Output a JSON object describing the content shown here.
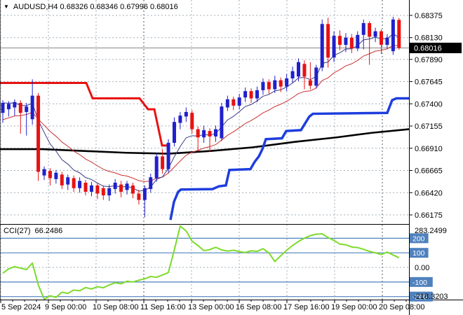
{
  "window": {
    "symbol_line": "AUDUSD,H4 0.68326 0.68346 0.67996 0.68016",
    "symbol": "AUDUSD",
    "timeframe": "H4",
    "ohlc": {
      "open": "0.68326",
      "high": "0.68346",
      "low": "0.67996",
      "close": "0.68016"
    }
  },
  "icons": {
    "symbol_dropdown": "▼"
  },
  "price_axis": {
    "labels": [
      "0.68375",
      "0.68130",
      "0.67890",
      "0.67645",
      "0.67400",
      "0.67155",
      "0.66910",
      "0.66665",
      "0.66420",
      "0.66175"
    ],
    "current": "0.68016"
  },
  "time_axis": {
    "labels": [
      "5 Sep 2024",
      "9 Sep 00:00",
      "10 Sep 08:00",
      "11 Sep 16:00",
      "13 Sep 00:00",
      "16 Sep 08:00",
      "17 Sep 16:00",
      "19 Sep 00:00",
      "20 Sep 08:00"
    ]
  },
  "cci_panel": {
    "label": "CCI(27)",
    "value": "66.2486",
    "max": "283.2499",
    "min": "-218.3203",
    "zero_label": "0.00",
    "level_labels": [
      "200",
      "100",
      "-100",
      "-200"
    ]
  },
  "colors": {
    "bull": "#2020CC",
    "bear": "#E81212",
    "step_blue": "#1E3EDD",
    "ema_fast": "#3A3A85",
    "ema_slow": "#C83232",
    "sma_black": "#000000",
    "cci": "#7CDB2A",
    "level_blue": "#4F81BD",
    "grid": "#A2AFBA",
    "grid_dark": "#525B63",
    "current_line": "#888888",
    "badge_bg": "#000000",
    "badge_text": "#FFFFFF"
  },
  "chart_data": {
    "type": "candlestick",
    "title": "AUDUSD,H4",
    "ylabel": "price",
    "ylim": [
      0.66175,
      0.68375
    ],
    "current_price": 0.68016,
    "candles_ohlc": [
      [
        0.673,
        0.6744,
        0.6719,
        0.6741
      ],
      [
        0.6734,
        0.6743,
        0.6726,
        0.674
      ],
      [
        0.6736,
        0.6745,
        0.6727,
        0.6742
      ],
      [
        0.6741,
        0.6744,
        0.6707,
        0.673
      ],
      [
        0.6731,
        0.6741,
        0.6705,
        0.6737
      ],
      [
        0.6723,
        0.6767,
        0.6717,
        0.6749
      ],
      [
        0.6749,
        0.6752,
        0.6655,
        0.6665
      ],
      [
        0.6661,
        0.6671,
        0.6656,
        0.6668
      ],
      [
        0.6666,
        0.6669,
        0.665,
        0.6658
      ],
      [
        0.6657,
        0.6667,
        0.6652,
        0.6664
      ],
      [
        0.6662,
        0.6665,
        0.6646,
        0.665
      ],
      [
        0.6651,
        0.6662,
        0.6645,
        0.6659
      ],
      [
        0.6658,
        0.6661,
        0.6643,
        0.6647
      ],
      [
        0.6647,
        0.6659,
        0.6642,
        0.6655
      ],
      [
        0.6653,
        0.6656,
        0.6639,
        0.6643
      ],
      [
        0.6643,
        0.6654,
        0.6638,
        0.665
      ],
      [
        0.665,
        0.6653,
        0.6635,
        0.6641
      ],
      [
        0.6647,
        0.665,
        0.6634,
        0.6639
      ],
      [
        0.6639,
        0.6651,
        0.6633,
        0.6647
      ],
      [
        0.6646,
        0.6657,
        0.6641,
        0.6653
      ],
      [
        0.6651,
        0.6655,
        0.6637,
        0.6643
      ],
      [
        0.6645,
        0.6655,
        0.664,
        0.6652
      ],
      [
        0.665,
        0.6653,
        0.6636,
        0.6641
      ],
      [
        0.6641,
        0.6645,
        0.6629,
        0.6634
      ],
      [
        0.6634,
        0.665,
        0.6615,
        0.6647
      ],
      [
        0.6646,
        0.6663,
        0.6642,
        0.6659
      ],
      [
        0.6658,
        0.6686,
        0.6654,
        0.6682
      ],
      [
        0.6682,
        0.669,
        0.6663,
        0.6668
      ],
      [
        0.6668,
        0.6701,
        0.6664,
        0.6697
      ],
      [
        0.6697,
        0.6725,
        0.6693,
        0.672
      ],
      [
        0.6719,
        0.6731,
        0.6712,
        0.6727
      ],
      [
        0.6726,
        0.6736,
        0.672,
        0.6731
      ],
      [
        0.673,
        0.6733,
        0.6707,
        0.6712
      ],
      [
        0.6712,
        0.6715,
        0.6688,
        0.6703
      ],
      [
        0.6703,
        0.6716,
        0.6697,
        0.6711
      ],
      [
        0.671,
        0.6713,
        0.6687,
        0.6704
      ],
      [
        0.6704,
        0.6716,
        0.6698,
        0.6712
      ],
      [
        0.6702,
        0.6741,
        0.6699,
        0.6737
      ],
      [
        0.6736,
        0.6749,
        0.6732,
        0.6745
      ],
      [
        0.6745,
        0.6748,
        0.6733,
        0.6738
      ],
      [
        0.6738,
        0.6751,
        0.6734,
        0.6747
      ],
      [
        0.6747,
        0.6758,
        0.6742,
        0.6754
      ],
      [
        0.6754,
        0.6757,
        0.6741,
        0.6746
      ],
      [
        0.6746,
        0.6759,
        0.6742,
        0.6755
      ],
      [
        0.6755,
        0.6768,
        0.675,
        0.6764
      ],
      [
        0.6764,
        0.6767,
        0.6751,
        0.6756
      ],
      [
        0.6756,
        0.6771,
        0.6752,
        0.6766
      ],
      [
        0.6766,
        0.6769,
        0.6753,
        0.6759
      ],
      [
        0.6759,
        0.6773,
        0.6754,
        0.6768
      ],
      [
        0.6768,
        0.6781,
        0.6763,
        0.6776
      ],
      [
        0.677,
        0.679,
        0.6765,
        0.6786
      ],
      [
        0.6784,
        0.6788,
        0.6756,
        0.677
      ],
      [
        0.6766,
        0.6786,
        0.6756,
        0.676
      ],
      [
        0.676,
        0.6783,
        0.6757,
        0.678
      ],
      [
        0.678,
        0.6833,
        0.6776,
        0.6828
      ],
      [
        0.6828,
        0.6835,
        0.678,
        0.6791
      ],
      [
        0.6791,
        0.682,
        0.6786,
        0.6815
      ],
      [
        0.6815,
        0.6821,
        0.6799,
        0.6805
      ],
      [
        0.6805,
        0.6818,
        0.6797,
        0.6813
      ],
      [
        0.6813,
        0.6817,
        0.6796,
        0.6801
      ],
      [
        0.6801,
        0.682,
        0.6798,
        0.6816
      ],
      [
        0.6816,
        0.6833,
        0.68,
        0.6829
      ],
      [
        0.6829,
        0.6831,
        0.6783,
        0.6814
      ],
      [
        0.6814,
        0.6824,
        0.6808,
        0.682
      ],
      [
        0.682,
        0.6822,
        0.6795,
        0.6805
      ],
      [
        0.6805,
        0.6817,
        0.6801,
        0.6813
      ],
      [
        0.6798,
        0.6836,
        0.6794,
        0.6833
      ],
      [
        0.68326,
        0.68346,
        0.67996,
        0.68016
      ]
    ],
    "overlays": {
      "trend_stop_red": [
        [
          0,
          0.6763
        ],
        [
          123,
          0.6763
        ],
        [
          132,
          0.6746
        ],
        [
          199,
          0.6746
        ],
        [
          211,
          0.6734
        ],
        [
          220,
          0.6734
        ],
        [
          231,
          0.6694
        ],
        [
          238,
          0.6694
        ]
      ],
      "trend_stop_blue": [
        [
          243,
          0.6612
        ],
        [
          248,
          0.6632
        ],
        [
          254,
          0.6643
        ],
        [
          258,
          0.66455
        ],
        [
          303,
          0.6646
        ],
        [
          312,
          0.6649
        ],
        [
          322,
          0.665
        ],
        [
          327,
          0.6667
        ],
        [
          357,
          0.6668
        ],
        [
          363,
          0.6676
        ],
        [
          369,
          0.6682
        ],
        [
          374,
          0.669
        ],
        [
          379,
          0.6701
        ],
        [
          402,
          0.6702
        ],
        [
          408,
          0.671
        ],
        [
          429,
          0.6711
        ],
        [
          441,
          0.6726
        ],
        [
          446,
          0.6729
        ],
        [
          552,
          0.673
        ],
        [
          559,
          0.6744
        ],
        [
          565,
          0.6746
        ],
        [
          583,
          0.6746
        ]
      ],
      "sma_long": [
        [
          0,
          0.669
        ],
        [
          60,
          0.669
        ],
        [
          120,
          0.6688
        ],
        [
          180,
          0.6686
        ],
        [
          240,
          0.6685
        ],
        [
          300,
          0.6688
        ],
        [
          360,
          0.6692
        ],
        [
          420,
          0.6698
        ],
        [
          480,
          0.6703
        ],
        [
          530,
          0.6708
        ],
        [
          583,
          0.6712
        ]
      ],
      "ema_fast_period": 7,
      "ema_slow_period": 16,
      "ema_slow_seed": 0.672
    },
    "cci": {
      "period": 27,
      "last": 66.2486,
      "max": 283.2499,
      "min": -218.3203,
      "levels": [
        200,
        100,
        0,
        -100,
        -200
      ],
      "values": [
        -40,
        -10,
        5,
        -5,
        -15,
        30,
        -120,
        -218.32,
        -195,
        -205,
        -170,
        -178,
        -155,
        -160,
        -138,
        -148,
        -132,
        -140,
        -120,
        -105,
        -112,
        -95,
        -100,
        -88,
        -78,
        -62,
        -68,
        -52,
        -35,
        120,
        283.25,
        250,
        180,
        150,
        115,
        122,
        138,
        120,
        112,
        118,
        108,
        102,
        114,
        110,
        128,
        100,
        40,
        80,
        118,
        150,
        178,
        200,
        218,
        228,
        230,
        205,
        185,
        160,
        155,
        140,
        136,
        124,
        110,
        100,
        88,
        105,
        85,
        66.25
      ]
    }
  }
}
